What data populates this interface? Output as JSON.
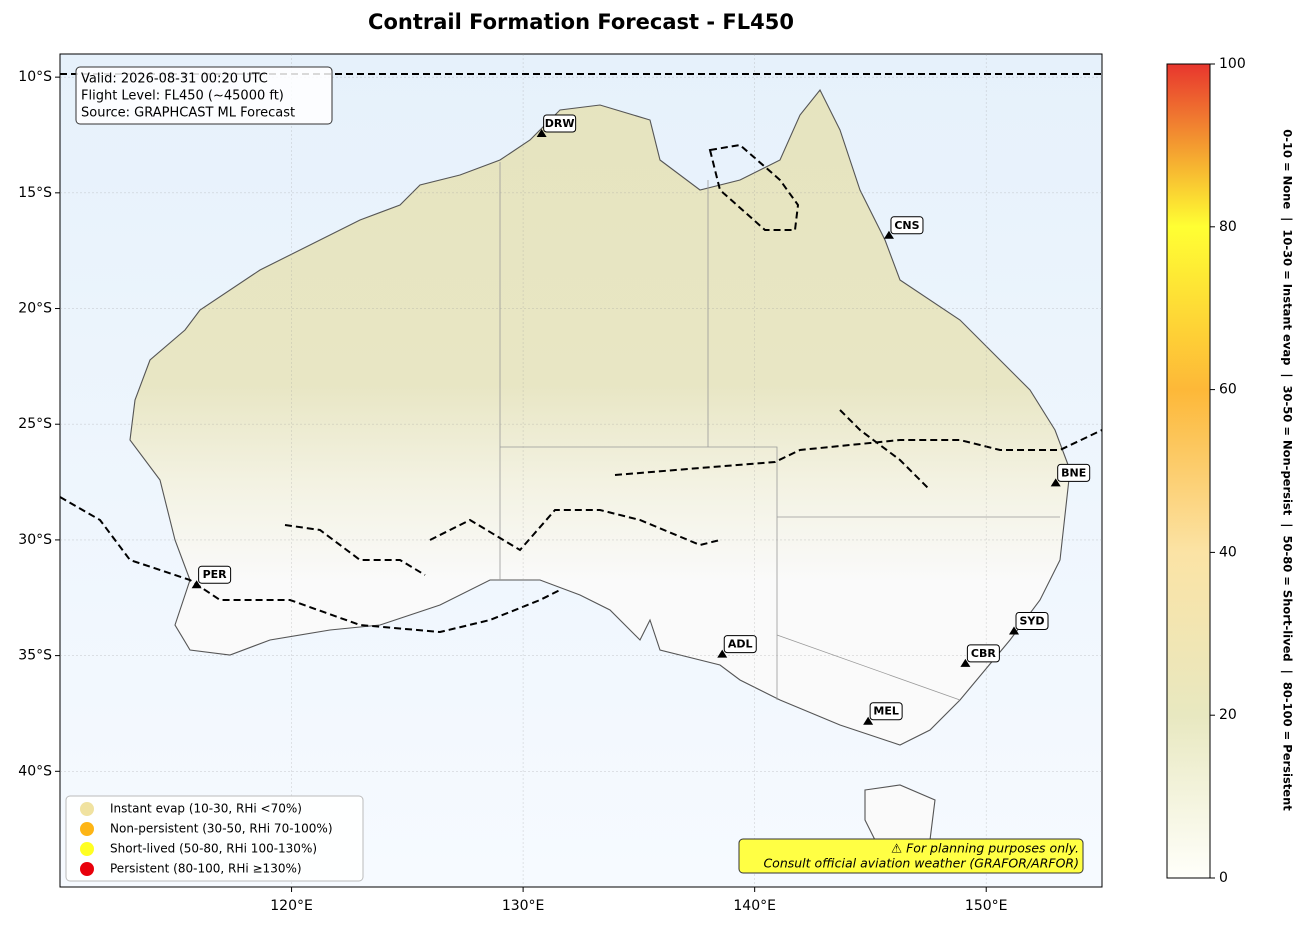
{
  "title": "Contrail Formation Forecast - FL450",
  "map": {
    "xlim": [
      110,
      155
    ],
    "ylim": [
      -45,
      -9
    ],
    "xticks": [
      {
        "value": 120,
        "label": "120°E"
      },
      {
        "value": 130,
        "label": "130°E"
      },
      {
        "value": 140,
        "label": "140°E"
      },
      {
        "value": 150,
        "label": "150°E"
      }
    ],
    "yticks": [
      {
        "value": -10,
        "label": "10°S"
      },
      {
        "value": -15,
        "label": "15°S"
      },
      {
        "value": -20,
        "label": "20°S"
      },
      {
        "value": -25,
        "label": "25°S"
      },
      {
        "value": -30,
        "label": "30°S"
      },
      {
        "value": -35,
        "label": "35°S"
      },
      {
        "value": -40,
        "label": "40°S"
      }
    ]
  },
  "info_box": [
    "Valid: 2026-08-31 00:20 UTC",
    "Flight Level: FL450 (~45000 ft)",
    "Source: GRAPHCAST ML Forecast"
  ],
  "cities": [
    {
      "code": "DRW",
      "lon": 130.8,
      "lat": -12.5
    },
    {
      "code": "CNS",
      "lon": 145.8,
      "lat": -16.9
    },
    {
      "code": "BNE",
      "lon": 153.0,
      "lat": -27.6
    },
    {
      "code": "PER",
      "lon": 115.9,
      "lat": -32.0
    },
    {
      "code": "ADL",
      "lon": 138.6,
      "lat": -35.0
    },
    {
      "code": "SYD",
      "lon": 151.2,
      "lat": -34.0
    },
    {
      "code": "CBR",
      "lon": 149.1,
      "lat": -35.4
    },
    {
      "code": "MEL",
      "lon": 144.9,
      "lat": -37.9
    }
  ],
  "legend": [
    {
      "label": "Instant evap (10-30, RHi <70%)",
      "color": "#f0e2a0"
    },
    {
      "label": "Non-persistent (30-50, RHi 70-100%)",
      "color": "#fdb515"
    },
    {
      "label": "Short-lived (50-80, RHi 100-130%)",
      "color": "#ffff22"
    },
    {
      "label": "Persistent (80-100, RHi ≥130%)",
      "color": "#e8000b"
    }
  ],
  "colorbar": {
    "lim": [
      0,
      100
    ],
    "ticks": [
      0,
      20,
      40,
      60,
      80,
      100
    ],
    "stops": [
      {
        "at": 0,
        "color": "#fffffa"
      },
      {
        "at": 20,
        "color": "#e8e8c0"
      },
      {
        "at": 40,
        "color": "#fbe3a5"
      },
      {
        "at": 60,
        "color": "#fdb838"
      },
      {
        "at": 80,
        "color": "#ffff33"
      },
      {
        "at": 100,
        "color": "#e8362e"
      }
    ],
    "label": "0-10 = None  |  10-30 = Instant evap  |  30-50 = Non-persist  |  50-80 = Short-lived  |  80-100 = Persistent"
  },
  "warning": [
    "⚠ For planning purposes only.",
    "Consult official aviation weather (GRAFOR/ARFOR)"
  ]
}
